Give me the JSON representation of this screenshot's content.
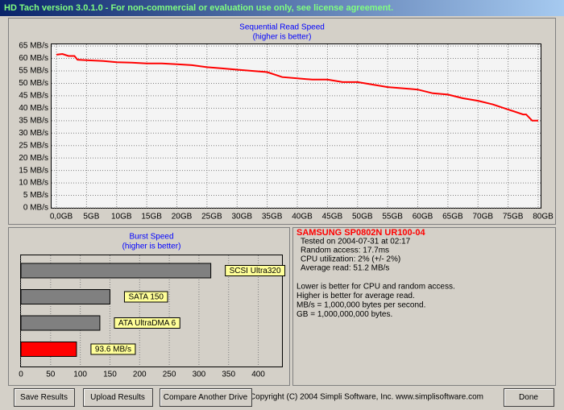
{
  "window": {
    "title": "HD Tach version 3.0.1.0  - For non-commercial or evaluation use only, see license agreement."
  },
  "chart_data": [
    {
      "type": "line",
      "title": "Sequential Read Speed",
      "subtitle": "(higher is better)",
      "x": [
        0,
        1,
        2,
        3,
        3.5,
        5,
        7.5,
        10,
        12.5,
        15,
        17.5,
        20,
        22.5,
        25,
        27.5,
        30,
        32.5,
        35,
        37.5,
        40,
        42.5,
        45,
        47.5,
        50,
        52.5,
        55,
        57.5,
        60,
        62.5,
        65,
        67.5,
        70,
        72.5,
        75,
        77.5,
        78,
        79,
        80
      ],
      "series": [
        {
          "color": "#ff0000",
          "values": [
            61.5,
            61.8,
            61,
            61,
            59.5,
            59.3,
            59,
            58.5,
            58.3,
            58,
            58,
            57.7,
            57.3,
            56.5,
            56,
            55.5,
            55,
            54.5,
            52.5,
            52,
            51.5,
            51.5,
            50.5,
            50.5,
            49.5,
            48.5,
            48,
            47.5,
            46,
            45.5,
            44,
            43,
            41.5,
            39.5,
            37.5,
            37.5,
            35,
            35
          ]
        }
      ],
      "xlim": [
        0,
        80
      ],
      "xticks": [
        {
          "value": 0,
          "label": "0,0GB"
        },
        {
          "value": 5,
          "label": "5GB"
        },
        {
          "value": 10,
          "label": "10GB"
        },
        {
          "value": 15,
          "label": "15GB"
        },
        {
          "value": 20,
          "label": "20GB"
        },
        {
          "value": 25,
          "label": "25GB"
        },
        {
          "value": 30,
          "label": "30GB"
        },
        {
          "value": 35,
          "label": "35GB"
        },
        {
          "value": 40,
          "label": "40GB"
        },
        {
          "value": 45,
          "label": "45GB"
        },
        {
          "value": 50,
          "label": "50GB"
        },
        {
          "value": 55,
          "label": "55GB"
        },
        {
          "value": 60,
          "label": "60GB"
        },
        {
          "value": 65,
          "label": "65GB"
        },
        {
          "value": 70,
          "label": "70GB"
        },
        {
          "value": 75,
          "label": "75GB"
        },
        {
          "value": 80,
          "label": "80GB"
        }
      ],
      "ylim": [
        0,
        66
      ],
      "yticks": [
        {
          "value": 0,
          "label": "0 MB/s"
        },
        {
          "value": 5,
          "label": "5 MB/s"
        },
        {
          "value": 10,
          "label": "10 MB/s"
        },
        {
          "value": 15,
          "label": "15 MB/s"
        },
        {
          "value": 20,
          "label": "20 MB/s"
        },
        {
          "value": 25,
          "label": "25 MB/s"
        },
        {
          "value": 30,
          "label": "30 MB/s"
        },
        {
          "value": 35,
          "label": "35 MB/s"
        },
        {
          "value": 40,
          "label": "40 MB/s"
        },
        {
          "value": 45,
          "label": "45 MB/s"
        },
        {
          "value": 50,
          "label": "50 MB/s"
        },
        {
          "value": 55,
          "label": "55 MB/s"
        },
        {
          "value": 60,
          "label": "60 MB/s"
        },
        {
          "value": 65,
          "label": "65 MB/s"
        }
      ],
      "grid": true
    },
    {
      "type": "bar",
      "orientation": "horizontal",
      "title": "Burst Speed",
      "subtitle": "(higher is better)",
      "categories": [
        "SCSI Ultra320",
        "SATA 150",
        "ATA UltraDMA 6",
        null
      ],
      "values": [
        320,
        150,
        133,
        93.6
      ],
      "value_labels": [
        null,
        null,
        null,
        "93.6 MB/s"
      ],
      "colors": [
        "#808080",
        "#808080",
        "#808080",
        "#ff0000"
      ],
      "xlim": [
        0,
        440
      ],
      "xticks": [
        0,
        50,
        100,
        150,
        200,
        250,
        300,
        350,
        400
      ],
      "grid": true
    }
  ],
  "info": {
    "drive": "SAMSUNG SP0802N UR100-04",
    "lines": [
      "Tested on 2004-07-31 at 02:17",
      "Random access: 17.7ms",
      "CPU utilization: 2% (+/- 2%)",
      "Average read: 51.2 MB/s"
    ],
    "notes": [
      "Lower is better for CPU and random access.",
      "Higher is better for average read.",
      "MB/s = 1,000,000 bytes per second.",
      "GB = 1,000,000,000 bytes."
    ]
  },
  "buttons": [
    "Save Results",
    "Upload Results",
    "Compare Another Drive",
    "Done"
  ],
  "copyright": "Copyright (C) 2004 Simpli Software, Inc. www.simplisoftware.com"
}
